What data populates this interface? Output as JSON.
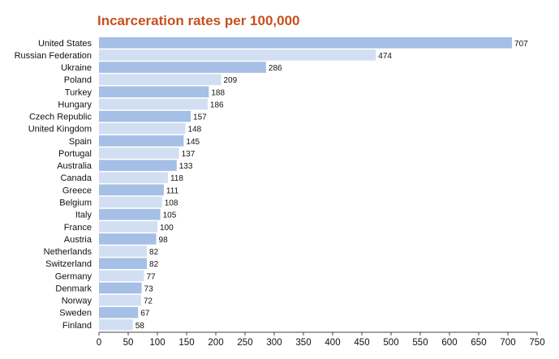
{
  "chart_data": {
    "type": "bar",
    "orientation": "horizontal",
    "title": "Incarceration rates per 100,000",
    "categories": [
      "United States",
      "Russian Federation",
      "Ukraine",
      "Poland",
      "Turkey",
      "Hungary",
      "Czech Republic",
      "United Kingdom",
      "Spain",
      "Portugal",
      "Australia",
      "Canada",
      "Greece",
      "Belgium",
      "Italy",
      "France",
      "Austria",
      "Netherlands",
      "Switzerland",
      "Germany",
      "Denmark",
      "Norway",
      "Sweden",
      "Finland"
    ],
    "values": [
      707,
      474,
      286,
      209,
      188,
      186,
      157,
      148,
      145,
      137,
      133,
      118,
      111,
      108,
      105,
      100,
      98,
      82,
      82,
      77,
      73,
      72,
      67,
      58
    ],
    "xlim": [
      0,
      750
    ],
    "xticks": [
      0,
      50,
      100,
      150,
      200,
      250,
      300,
      350,
      400,
      450,
      500,
      550,
      600,
      650,
      700,
      750
    ],
    "xlabel": "",
    "ylabel": "",
    "grid": false,
    "colors": {
      "dark": "#a5bfe6",
      "light": "#d2dff3",
      "title": "#c8501e",
      "text": "#111111"
    }
  }
}
